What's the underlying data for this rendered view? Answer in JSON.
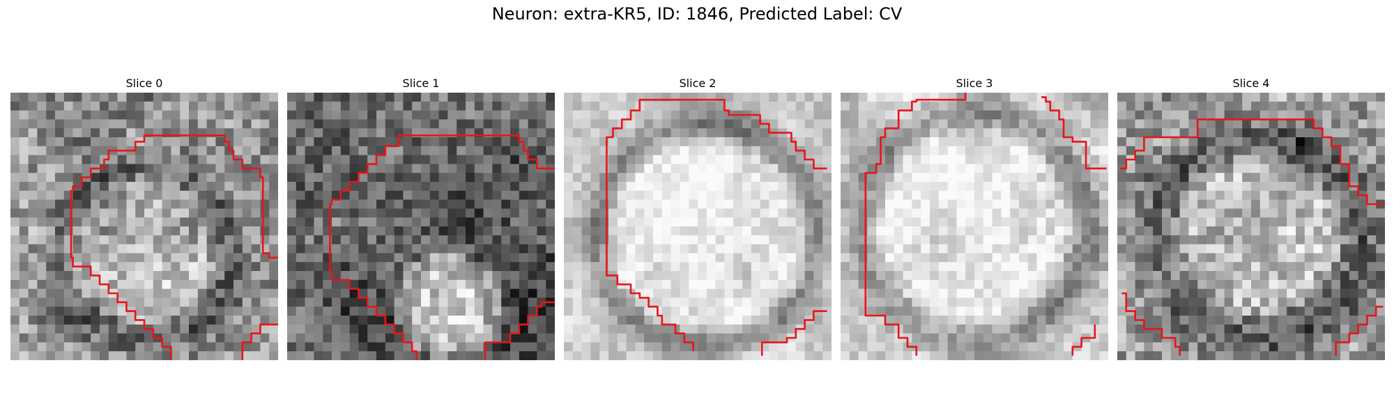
{
  "figure": {
    "title": "Neuron: extra-KR5, ID: 1846, Predicted Label: CV"
  },
  "panels": [
    {
      "title": "Slice 0"
    },
    {
      "title": "Slice 1"
    },
    {
      "title": "Slice 2"
    },
    {
      "title": "Slice 3"
    },
    {
      "title": "Slice 4"
    }
  ],
  "colors": {
    "contour": "#e8141a",
    "background": "#ffffff"
  }
}
